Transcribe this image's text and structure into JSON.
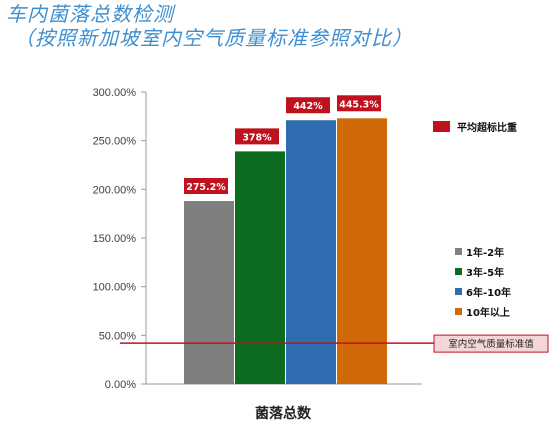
{
  "title": {
    "line1": "车内菌落总数检测",
    "line2": "（按照新加坡室内空气质量标准参照对比）"
  },
  "chart_data": {
    "type": "bar",
    "xlabel": "菌落总数",
    "ylim": [
      0,
      300
    ],
    "yticks": [
      "300.00%",
      "250.00%",
      "200.00%",
      "150.00%",
      "100.00%",
      "50.00%",
      "0.00%"
    ],
    "series": [
      {
        "name": "1年-2年",
        "value": 188,
        "label": "275.2%",
        "color": "#7f7f7f"
      },
      {
        "name": "3年-5年",
        "value": 239,
        "label": "378%",
        "color": "#0b6b1f"
      },
      {
        "name": "6年-10年",
        "value": 271,
        "label": "442%",
        "color": "#2e6db0"
      },
      {
        "name": "10年以上",
        "value": 273,
        "label": "445.3%",
        "color": "#d06a09"
      }
    ],
    "reference_line": {
      "label": "室内空气质量标准值",
      "value": 42,
      "color": "#c0121e"
    },
    "label_color": "#c0121e",
    "legend_top": {
      "label": "平均超标比重",
      "color": "#c0121e"
    },
    "grid": false,
    "legend_position": "right"
  }
}
